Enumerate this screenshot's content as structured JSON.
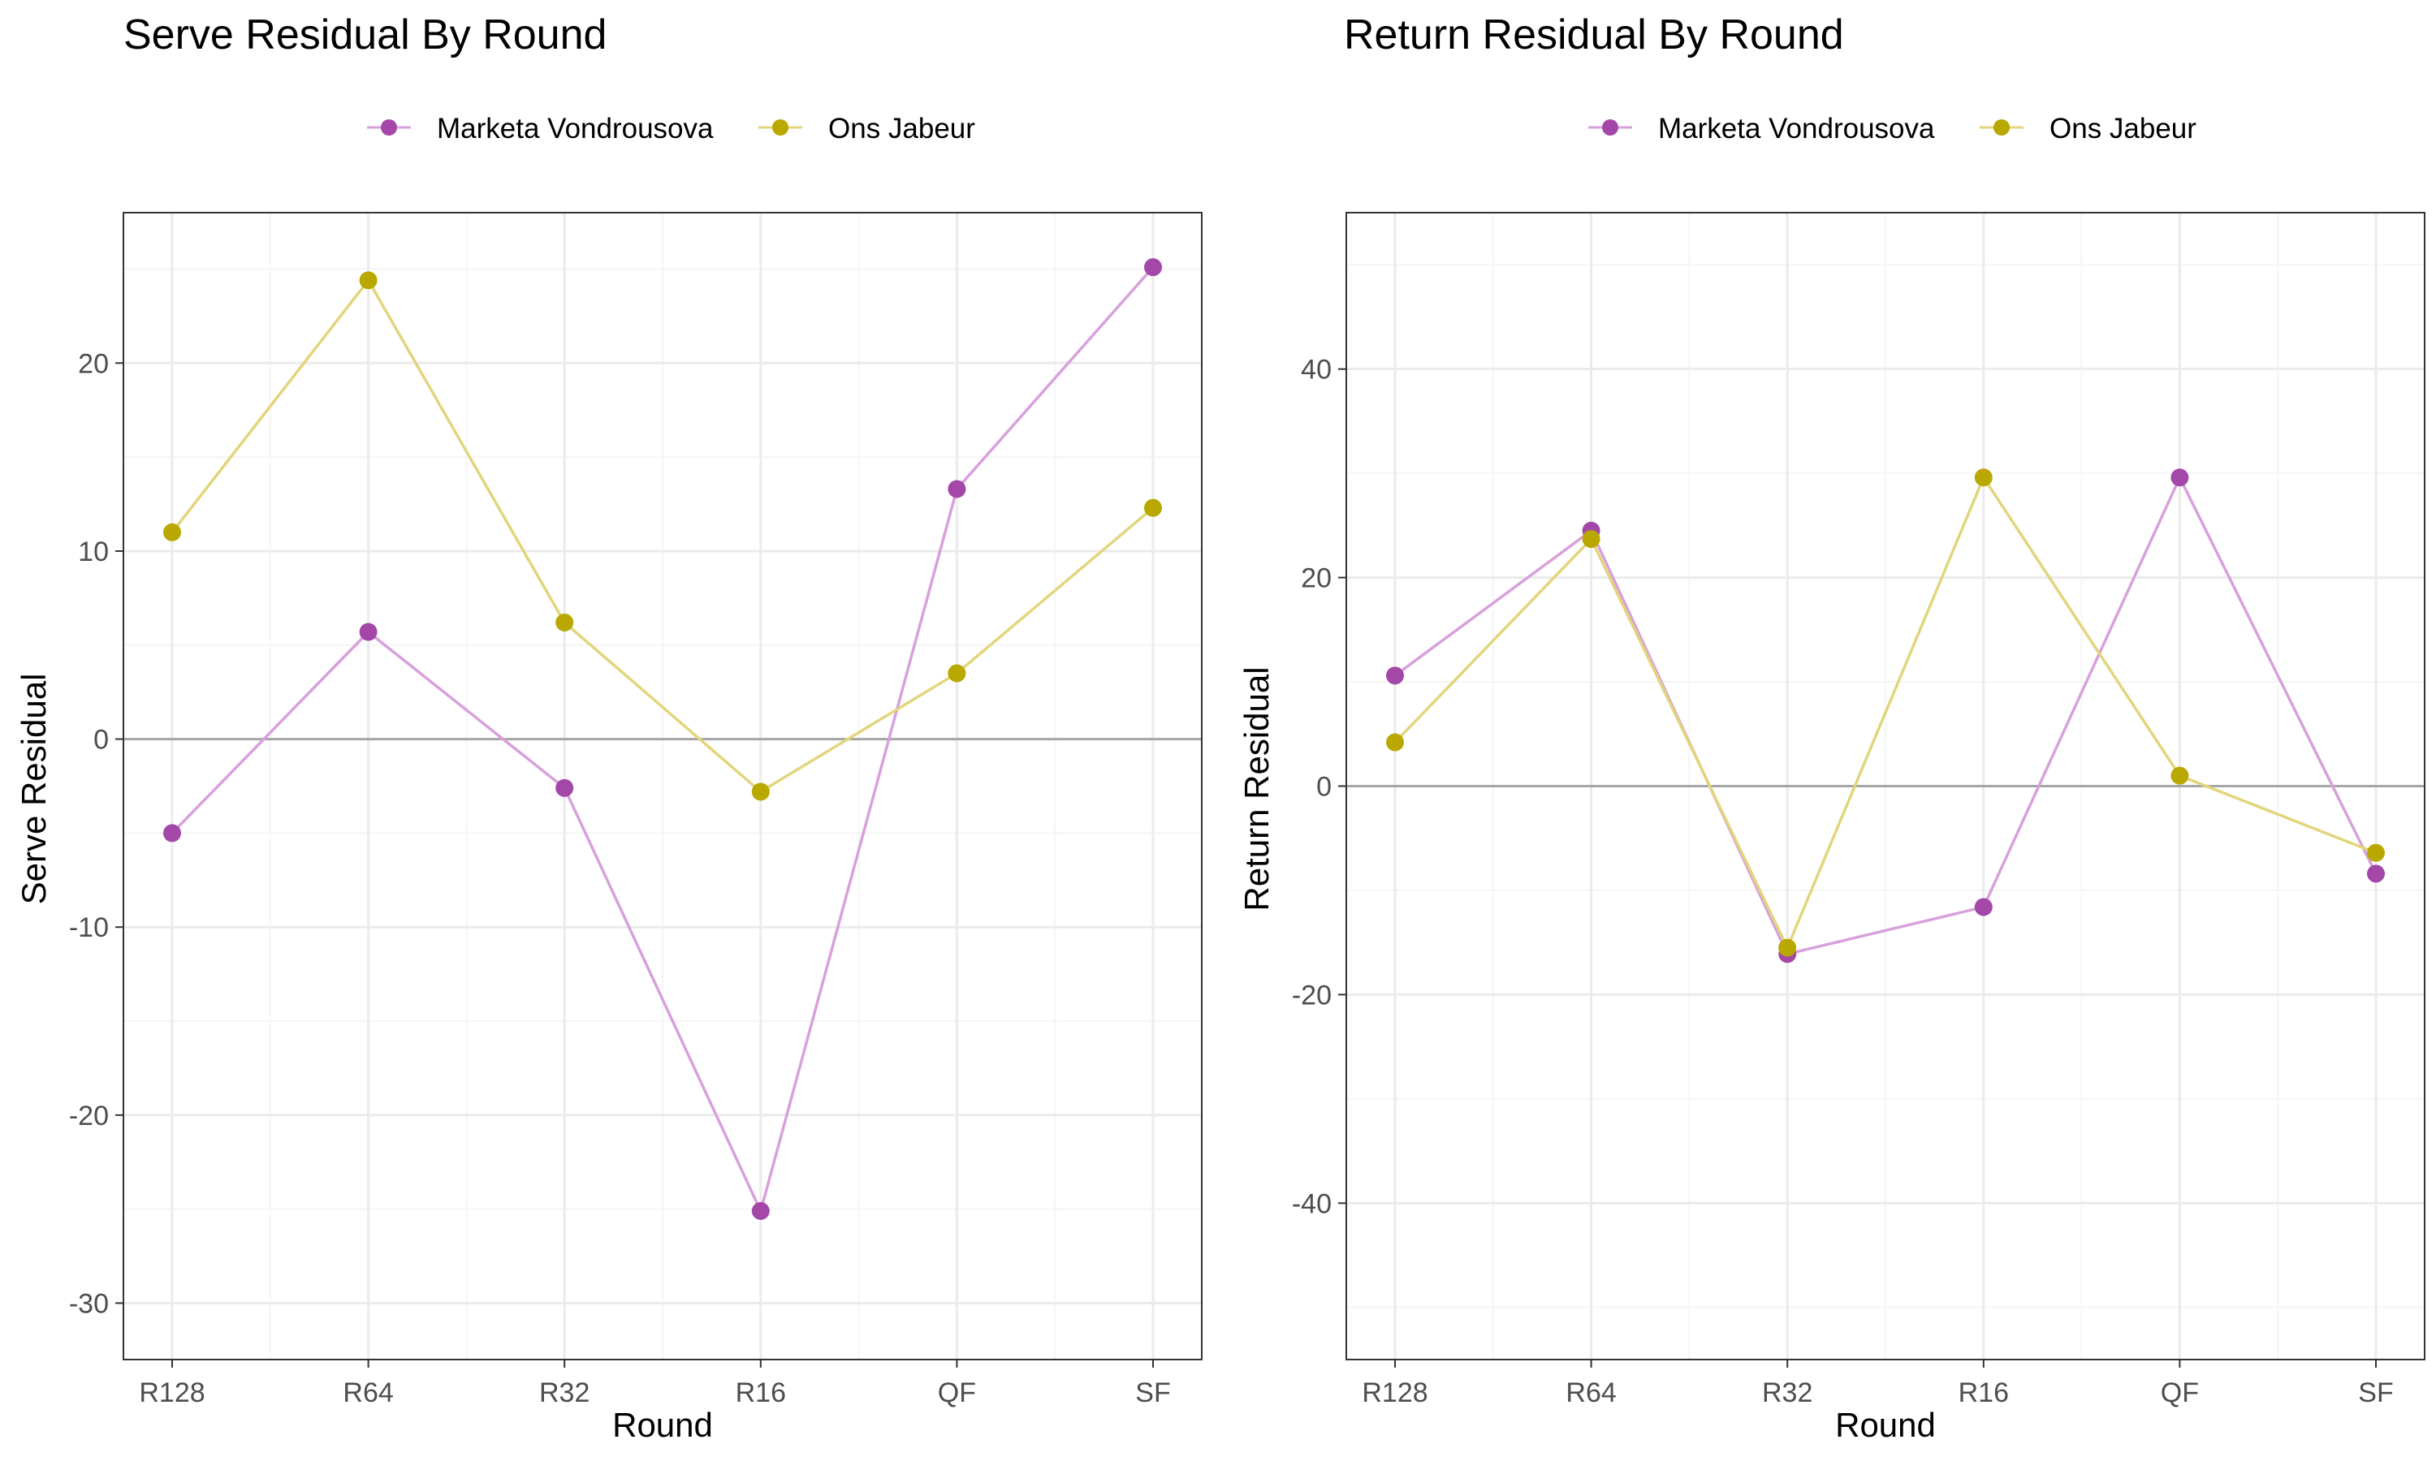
{
  "colors": {
    "vondrousova": "#A347A8",
    "jabeur": "#B8A800",
    "vondrousova_line": "#D8A0DC",
    "jabeur_line": "#E2D57C",
    "panel_border": "#333333",
    "grid_major": "#EBEBEB",
    "grid_minor": "#F5F5F5",
    "zero_line": "#A6A6A6"
  },
  "chart_data": [
    {
      "type": "line",
      "title": "Serve Residual By Round",
      "xlabel": "Round",
      "ylabel": "Serve Residual",
      "categories": [
        "R128",
        "R64",
        "R32",
        "R16",
        "QF",
        "SF"
      ],
      "ylim": [
        -33,
        28
      ],
      "yticks": [
        -30,
        -20,
        -10,
        0,
        10,
        20
      ],
      "yticklabels": [
        "-30",
        "-20",
        "-10",
        "0",
        "10",
        "20"
      ],
      "legend_position": "top",
      "series": [
        {
          "name": "Marketa Vondrousova",
          "color_key": "vondrousova",
          "values": [
            -5.0,
            5.7,
            -2.6,
            -25.1,
            13.3,
            25.1
          ]
        },
        {
          "name": "Ons Jabeur",
          "color_key": "jabeur",
          "values": [
            11.0,
            24.4,
            6.2,
            -2.8,
            3.5,
            12.3
          ]
        }
      ]
    },
    {
      "type": "line",
      "title": "Return Residual By Round",
      "xlabel": "Round",
      "ylabel": "Return Residual",
      "categories": [
        "R128",
        "R64",
        "R32",
        "R16",
        "QF",
        "SF"
      ],
      "ylim": [
        -55,
        55
      ],
      "yticks": [
        -40,
        -20,
        0,
        20,
        40
      ],
      "yticklabels": [
        "-40",
        "-20",
        "0",
        "20",
        "40"
      ],
      "legend_position": "top",
      "series": [
        {
          "name": "Marketa Vondrousova",
          "color_key": "vondrousova",
          "values": [
            10.6,
            24.5,
            -16.1,
            -11.6,
            29.6,
            -8.4
          ]
        },
        {
          "name": "Ons Jabeur",
          "color_key": "jabeur",
          "values": [
            4.2,
            23.7,
            -15.5,
            29.6,
            1.0,
            -6.4
          ]
        }
      ]
    }
  ]
}
